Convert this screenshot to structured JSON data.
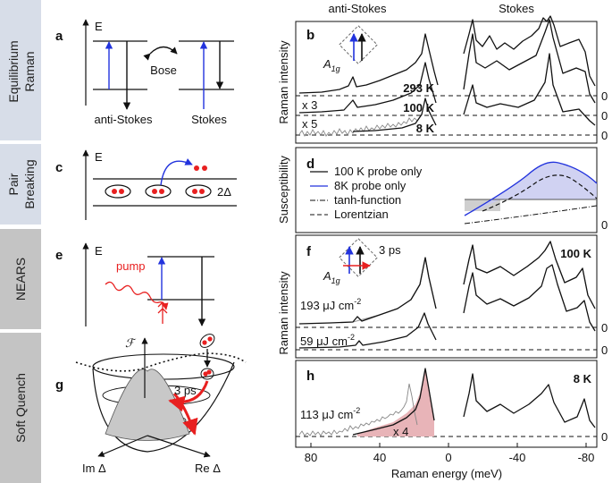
{
  "side_labels": {
    "equilibrium_raman": [
      "Equilibrium",
      "Raman"
    ],
    "pair_breaking": [
      "Pair",
      "Breaking"
    ],
    "nears": "NEARS",
    "soft_quench": "Soft Quench"
  },
  "panel_a": {
    "letter": "a",
    "energy": "E",
    "bose": "Bose",
    "anti_stokes": "anti-Stokes",
    "stokes": "Stokes"
  },
  "panel_c": {
    "letter": "c",
    "energy": "E",
    "gap": "2Δ"
  },
  "panel_e": {
    "letter": "e",
    "energy": "E",
    "pump": "pump"
  },
  "panel_g": {
    "letter": "g",
    "free_energy": "ℱ",
    "time": "3 ps",
    "im_axis": "Im Δ",
    "re_axis": "Re Δ"
  },
  "top_labels": {
    "anti_stokes": "anti-Stokes",
    "stokes": "Stokes"
  },
  "panel_b": {
    "letter": "b",
    "y_label": "Raman intensity",
    "symmetry": {
      "symbol": "A",
      "subscript": "1g"
    },
    "temperatures": [
      "293 K",
      "100 K",
      "8 K"
    ],
    "factors": [
      "x 3",
      "x 5"
    ],
    "zeros": [
      "0",
      "0",
      "0"
    ]
  },
  "panel_d": {
    "letter": "d",
    "y_label": "Susceptibility",
    "legend": [
      "100 K probe only",
      "8K probe only",
      "tanh-function",
      "Lorentzian"
    ],
    "zero": "0"
  },
  "panel_f": {
    "letter": "f",
    "time": "3 ps",
    "symmetry": {
      "symbol": "A",
      "subscript": "1g"
    },
    "temperature": "100 K",
    "fluences": [
      {
        "value": "193 μJ cm",
        "exponent": "-2"
      },
      {
        "value": "59 μJ cm",
        "exponent": "-2"
      }
    ],
    "zeros": [
      "0",
      "0"
    ]
  },
  "panel_h": {
    "letter": "h",
    "fluence": {
      "value": "113 μJ cm",
      "exponent": "-2"
    },
    "factor": "x 4",
    "temperature": "8 K",
    "zero": "0"
  },
  "y_label_lower": "Raman intensity",
  "x_axis": {
    "label": "Raman energy (meV)",
    "ticks": [
      "80",
      "40",
      "0",
      "-40",
      "-80"
    ]
  }
}
